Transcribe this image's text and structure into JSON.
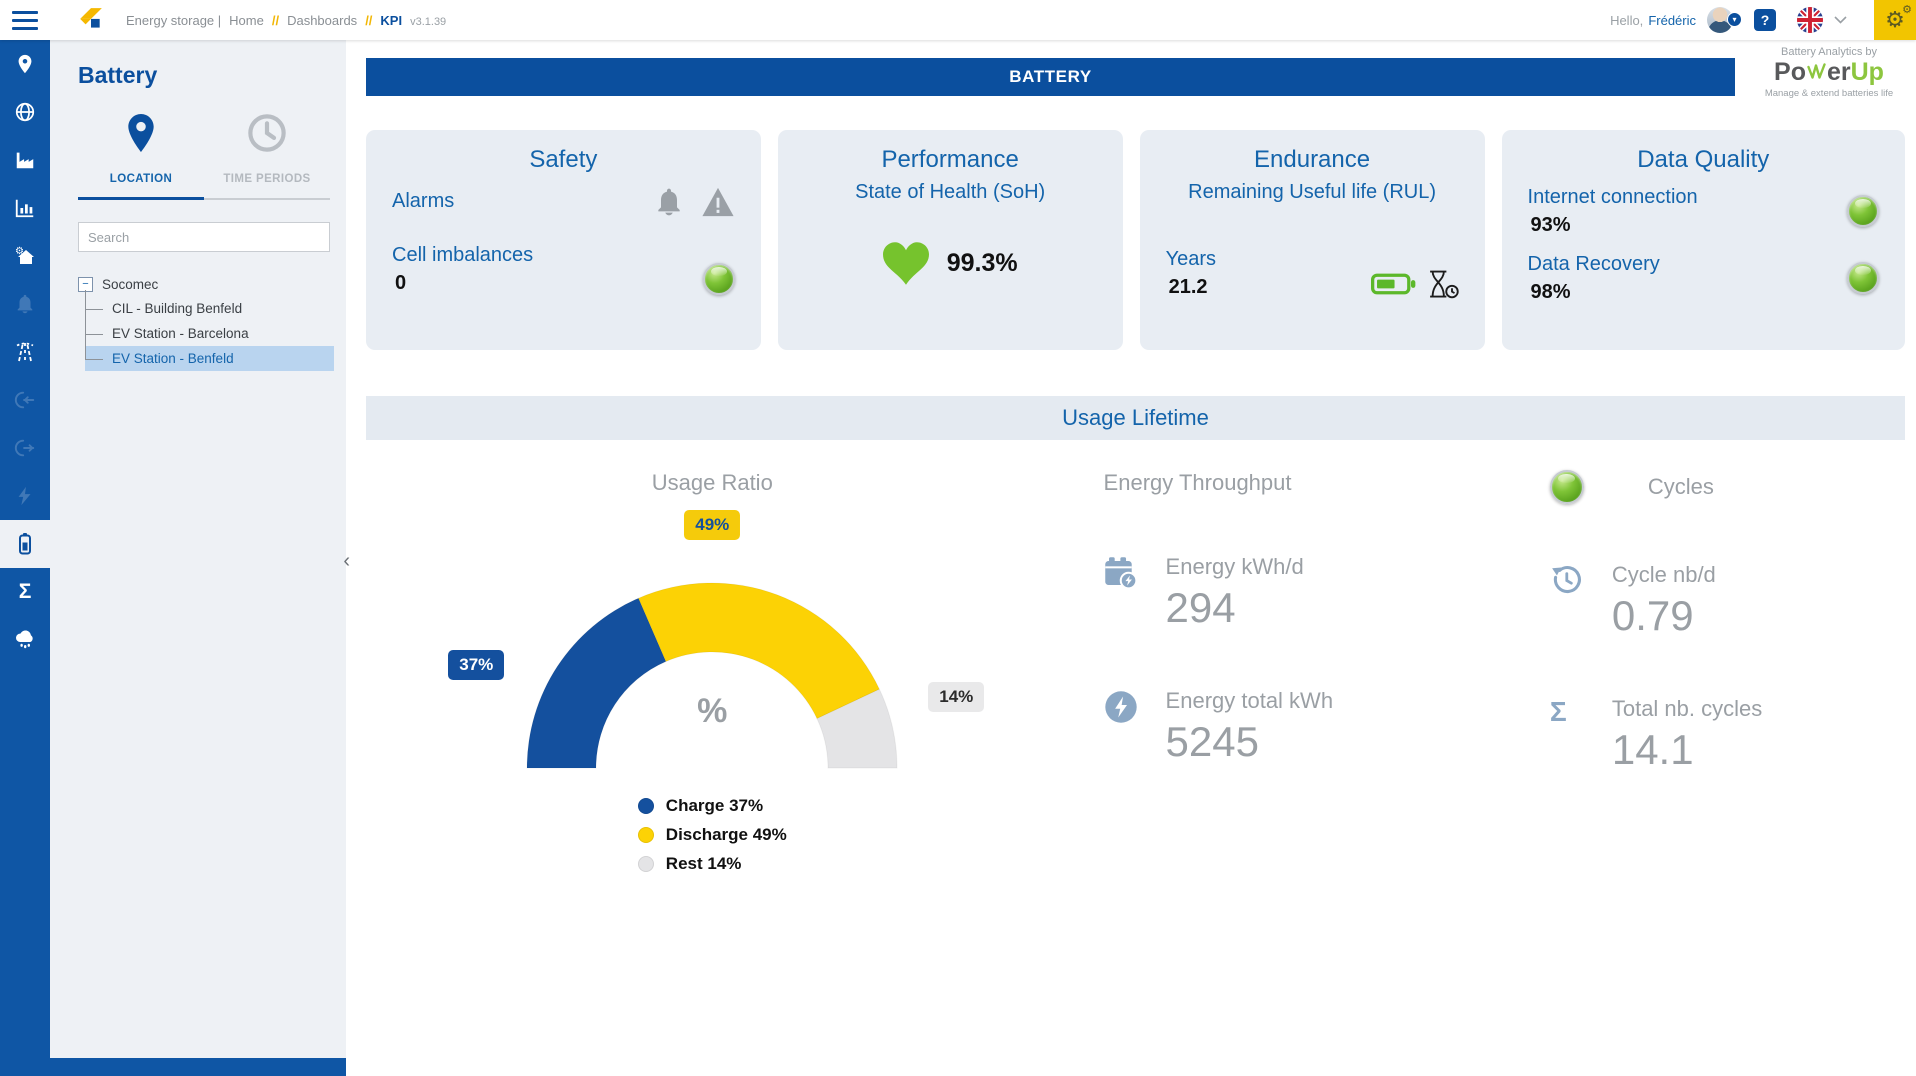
{
  "topbar": {
    "breadcrumb": {
      "app": "Energy storage |",
      "home": "Home",
      "sep": "//",
      "dashboards": "Dashboards",
      "kpi": "KPI",
      "version": "v3.1.39"
    },
    "greeting": "Hello,",
    "username": "Frédéric",
    "help_label": "?",
    "icons": [
      "hamburger-icon",
      "socomec-logo",
      "user-avatar",
      "help-icon",
      "uk-flag-icon",
      "chevron-down-icon",
      "settings-gears-icon"
    ]
  },
  "sidebar": {
    "icons": [
      "location-pin",
      "globe",
      "factory",
      "bar-chart",
      "home-settings",
      "bell",
      "road",
      "login-arrow",
      "logout-arrow",
      "lightning",
      "battery",
      "sigma",
      "rain-cloud"
    ],
    "active_icon": "battery",
    "sigma_glyph": "Σ"
  },
  "panel": {
    "title": "Battery",
    "tabs": [
      {
        "label": "LOCATION",
        "active": true
      },
      {
        "label": "TIME PERIODS",
        "active": false
      }
    ],
    "search_placeholder": "Search",
    "tree": {
      "expander": "−",
      "root": "Socomec",
      "children": [
        "CIL - Building Benfeld",
        "EV Station - Barcelona",
        "EV Station - Benfeld"
      ],
      "selected": "EV Station - Benfeld"
    },
    "collapse_glyph": "‹"
  },
  "main": {
    "banner": "BATTERY",
    "brand": {
      "byline": "Battery Analytics by",
      "part1": "Po",
      "part2": "er",
      "part3": "Up",
      "tagline": "Manage & extend batteries life"
    },
    "cards": {
      "safety": {
        "title": "Safety",
        "alarms_label": "Alarms",
        "cell_label": "Cell imbalances",
        "cell_value": "0"
      },
      "performance": {
        "title": "Performance",
        "subtitle": "State of Health (SoH)",
        "value": "99.3%"
      },
      "endurance": {
        "title": "Endurance",
        "subtitle": "Remaining Useful life (RUL)",
        "years_label": "Years",
        "years_value": "21.2"
      },
      "data_quality": {
        "title": "Data Quality",
        "internet_label": "Internet connection",
        "internet_value": "93%",
        "recovery_label": "Data Recovery",
        "recovery_value": "98%"
      }
    },
    "usage": {
      "section_title": "Usage Lifetime",
      "throughput": {
        "title": "Energy Throughput",
        "items": [
          {
            "label": "Energy kWh/d",
            "value": "294"
          },
          {
            "label": "Energy total kWh",
            "value": "5245"
          }
        ]
      },
      "cycles": {
        "title": "Cycles",
        "items": [
          {
            "label": "Cycle nb/d",
            "value": "0.79"
          },
          {
            "label": "Total nb. cycles",
            "value": "14.1"
          }
        ]
      }
    }
  },
  "chart_data": {
    "type": "pie",
    "variant": "semi-donut-gauge",
    "title": "Usage Ratio",
    "categories": [
      "Charge",
      "Discharge",
      "Rest"
    ],
    "values": [
      37,
      49,
      14
    ],
    "unit": "%",
    "colors": [
      "#14509e",
      "#fcd205",
      "#e4e4e6"
    ],
    "badge_backgrounds": [
      "#14509e",
      "#f5cb0b",
      "#e9e9ea"
    ],
    "labels": [
      "37%",
      "49%",
      "14%"
    ],
    "center_label": "%",
    "legend": [
      "Charge 37%",
      "Discharge 49%",
      "Rest 14%"
    ],
    "legend_position": "bottom"
  },
  "colors": {
    "brand_blue": "#0b4f9e",
    "sidebar_blue": "#0f56a5",
    "text_blue": "#1464ab",
    "accent_yellow": "#f2c500",
    "ok_green": "#76c32d",
    "steel_icon": "#8ba7c4",
    "card_bg": "#e8edf3",
    "muted_text": "#9a9fa4"
  }
}
